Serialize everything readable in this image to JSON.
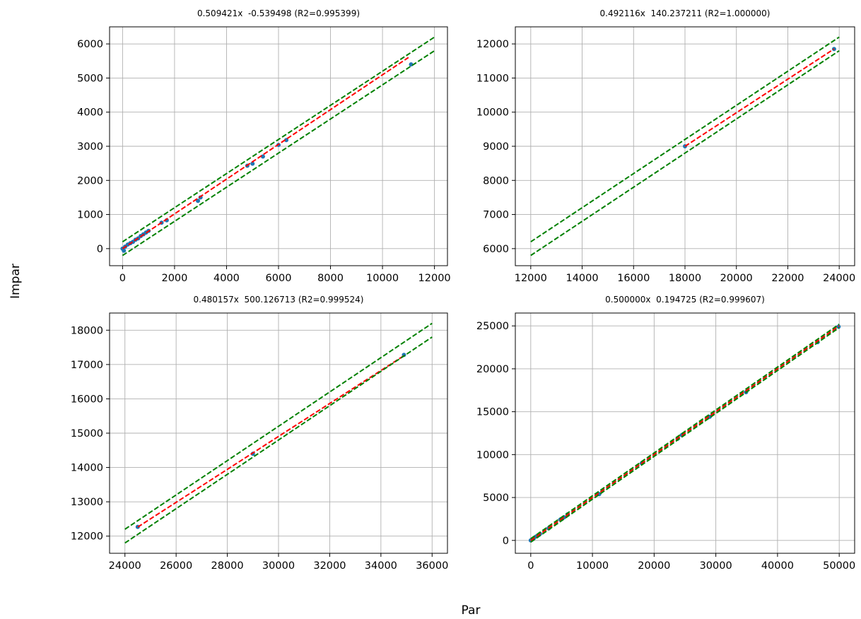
{
  "figure": {
    "xlabel": "Par",
    "ylabel": "Impar"
  },
  "colors": {
    "points": "#1f77b4",
    "fit": "#ff0000",
    "band": "#008000",
    "grid": "#b0b0b0"
  },
  "chart_data": [
    {
      "type": "scatter",
      "title": "0.509421x  -0.539498 (R2=0.995399)",
      "xlim": [
        -500,
        12500
      ],
      "ylim": [
        -500,
        6500
      ],
      "xticks": [
        0,
        2000,
        4000,
        6000,
        8000,
        10000,
        12000
      ],
      "yticks": [
        0,
        1000,
        2000,
        3000,
        4000,
        5000,
        6000
      ],
      "grid": true,
      "series": [
        {
          "kind": "points",
          "x": [
            0,
            50,
            100,
            200,
            300,
            400,
            500,
            600,
            700,
            800,
            900,
            1000,
            1500,
            1700,
            2900,
            3000,
            4800,
            5000,
            5400,
            6000,
            6300,
            11100
          ],
          "y": [
            0,
            -60,
            60,
            120,
            160,
            200,
            260,
            300,
            370,
            420,
            470,
            520,
            760,
            830,
            1400,
            1500,
            2430,
            2490,
            2700,
            3040,
            3180,
            5400
          ]
        },
        {
          "kind": "fit",
          "slope": 0.509421,
          "intercept": -0.539498,
          "x_range": [
            0,
            11000
          ]
        },
        {
          "kind": "band",
          "slope": 0.5,
          "intercept": 200,
          "x_range": [
            0,
            12000
          ]
        },
        {
          "kind": "band",
          "slope": 0.5,
          "intercept": -200,
          "x_range": [
            0,
            12000
          ]
        }
      ]
    },
    {
      "type": "scatter",
      "title": "0.492116x  140.237211 (R2=1.000000)",
      "xlim": [
        11400,
        24600
      ],
      "ylim": [
        5500,
        12500
      ],
      "xticks": [
        12000,
        14000,
        16000,
        18000,
        20000,
        22000,
        24000
      ],
      "yticks": [
        6000,
        7000,
        8000,
        9000,
        10000,
        11000,
        12000
      ],
      "grid": true,
      "series": [
        {
          "kind": "points",
          "x": [
            18000,
            23800
          ],
          "y": [
            9000,
            11850
          ]
        },
        {
          "kind": "fit",
          "slope": 0.492116,
          "intercept": 140.237211,
          "x_range": [
            18000,
            23800
          ]
        },
        {
          "kind": "band",
          "slope": 0.5,
          "intercept": 200,
          "x_range": [
            12000,
            24000
          ]
        },
        {
          "kind": "band",
          "slope": 0.5,
          "intercept": -200,
          "x_range": [
            12000,
            24000
          ]
        }
      ]
    },
    {
      "type": "scatter",
      "title": "0.480157x  500.126713 (R2=0.999524)",
      "xlim": [
        23400,
        36600
      ],
      "ylim": [
        11500,
        18500
      ],
      "xticks": [
        24000,
        26000,
        28000,
        30000,
        32000,
        34000,
        36000
      ],
      "yticks": [
        12000,
        13000,
        14000,
        15000,
        16000,
        17000,
        18000
      ],
      "grid": true,
      "series": [
        {
          "kind": "points",
          "x": [
            24500,
            29000,
            34900
          ],
          "y": [
            12270,
            14400,
            17280
          ]
        },
        {
          "kind": "fit",
          "slope": 0.480157,
          "intercept": 500.126713,
          "x_range": [
            24500,
            34900
          ]
        },
        {
          "kind": "band",
          "slope": 0.5,
          "intercept": 200,
          "x_range": [
            24000,
            36000
          ]
        },
        {
          "kind": "band",
          "slope": 0.5,
          "intercept": -200,
          "x_range": [
            24000,
            36000
          ]
        }
      ]
    },
    {
      "type": "scatter",
      "title": "0.500000x  0.194725 (R2=0.999607)",
      "xlim": [
        -2500,
        52500
      ],
      "ylim": [
        -1500,
        26500
      ],
      "xticks": [
        0,
        10000,
        20000,
        30000,
        40000,
        50000
      ],
      "yticks": [
        0,
        5000,
        10000,
        15000,
        20000,
        25000
      ],
      "grid": true,
      "series": [
        {
          "kind": "points",
          "x": [
            0,
            200,
            500,
            900,
            1500,
            2900,
            3000,
            4800,
            5000,
            5400,
            6000,
            11100,
            18000,
            23800,
            24500,
            29000,
            34900,
            46500,
            49900
          ],
          "y": [
            0,
            100,
            260,
            470,
            760,
            1400,
            1500,
            2430,
            2490,
            2700,
            3040,
            5400,
            9000,
            11850,
            12270,
            14400,
            17280,
            23100,
            24900
          ]
        },
        {
          "kind": "fit",
          "slope": 0.5,
          "intercept": 0.194725,
          "x_range": [
            0,
            50000
          ]
        },
        {
          "kind": "band",
          "slope": 0.5,
          "intercept": 200,
          "x_range": [
            0,
            50000
          ]
        },
        {
          "kind": "band",
          "slope": 0.5,
          "intercept": -200,
          "x_range": [
            0,
            50000
          ]
        }
      ]
    }
  ]
}
